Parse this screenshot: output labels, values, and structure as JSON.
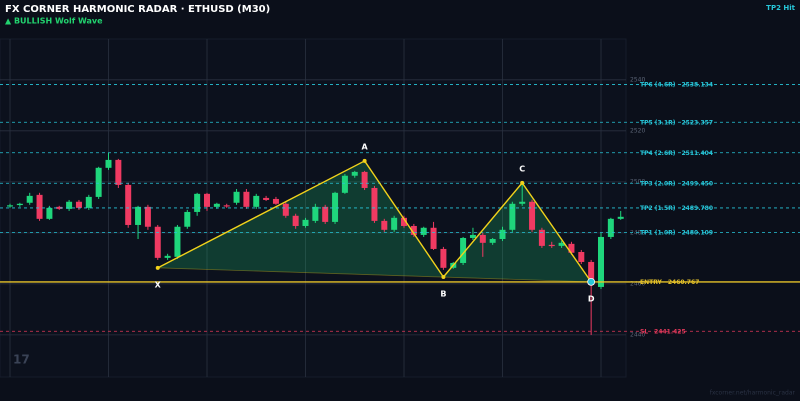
{
  "chart_data": {
    "type": "candlestick",
    "title": "FX CORNER HARMONIC RADAR  ·  ETHUSD (M30)",
    "subtitle": "▲ BULLISH  Wolf Wave",
    "status": "TP2 Hit",
    "watermark": "17",
    "footer": "fxcorner.net/harmonic_radar",
    "ylim": [
      2423.5,
      2556
    ],
    "yticks": [
      2440,
      2460,
      2480,
      2500,
      2520,
      2540
    ],
    "xticks": [
      0,
      10,
      20,
      30,
      40,
      50,
      60
    ],
    "grid": true,
    "up_color": "#1fd67c",
    "down_color": "#f03a62",
    "candles": {
      "open": [
        2490.4,
        2490.9,
        2491.8,
        2494.9,
        2485.5,
        2490.2,
        2489.4,
        2492.2,
        2489.8,
        2494.1,
        2505.5,
        2508.6,
        2498.8,
        2483.1,
        2490.2,
        2482.4,
        2470.2,
        2470.6,
        2482.4,
        2488.2,
        2495.3,
        2490.2,
        2490.8,
        2491.8,
        2496.1,
        2490.2,
        2493.7,
        2493.3,
        2491.4,
        2486.7,
        2482.7,
        2484.7,
        2490.2,
        2484.3,
        2495.7,
        2502.4,
        2503.9,
        2497.6,
        2484.7,
        2481.2,
        2485.9,
        2482.7,
        2479.2,
        2482.0,
        2473.7,
        2466.3,
        2468.2,
        2478.0,
        2479.2,
        2476.1,
        2477.6,
        2481.2,
        2491.4,
        2492.2,
        2481.2,
        2475.3,
        2474.9,
        2475.7,
        2472.5,
        2468.6,
        2458.8,
        2478.4,
        2485.5
      ],
      "high": [
        2491.4,
        2491.8,
        2495.7,
        2495.7,
        2490.6,
        2490.6,
        2492.9,
        2492.9,
        2494.9,
        2505.9,
        2511.4,
        2509.0,
        2499.6,
        2490.6,
        2491.0,
        2483.1,
        2471.8,
        2483.1,
        2489.0,
        2495.7,
        2495.7,
        2491.8,
        2491.4,
        2497.2,
        2497.2,
        2495.3,
        2494.5,
        2494.1,
        2492.2,
        2487.5,
        2485.9,
        2491.4,
        2491.0,
        2496.1,
        2503.1,
        2504.3,
        2504.3,
        2498.4,
        2485.5,
        2486.7,
        2486.7,
        2483.5,
        2482.4,
        2484.3,
        2474.5,
        2468.6,
        2478.4,
        2482.0,
        2480.0,
        2478.0,
        2482.4,
        2492.2,
        2499.6,
        2493.0,
        2482.0,
        2476.5,
        2476.9,
        2476.5,
        2473.3,
        2469.4,
        2480.0,
        2485.9,
        2488.6
      ],
      "low": [
        2489.8,
        2490.2,
        2491.0,
        2484.7,
        2485.1,
        2489.0,
        2488.6,
        2489.0,
        2489.0,
        2493.3,
        2504.7,
        2497.6,
        2482.0,
        2477.6,
        2481.2,
        2469.4,
        2469.4,
        2469.8,
        2481.6,
        2486.7,
        2488.6,
        2489.4,
        2489.8,
        2491.0,
        2489.4,
        2489.4,
        2492.5,
        2491.0,
        2485.9,
        2481.6,
        2482.0,
        2483.9,
        2483.5,
        2483.5,
        2495.3,
        2501.6,
        2496.8,
        2483.9,
        2480.4,
        2480.4,
        2482.0,
        2478.4,
        2478.4,
        2473.3,
        2465.5,
        2465.9,
        2467.4,
        2477.2,
        2470.6,
        2475.3,
        2476.8,
        2480.4,
        2490.6,
        2480.4,
        2474.1,
        2474.1,
        2474.1,
        2471.4,
        2467.8,
        2440.0,
        2458.0,
        2477.6,
        2485.1
      ],
      "close": [
        2490.8,
        2491.4,
        2494.5,
        2485.5,
        2489.8,
        2489.4,
        2492.2,
        2489.8,
        2494.1,
        2505.5,
        2508.6,
        2498.8,
        2483.1,
        2490.2,
        2482.4,
        2470.2,
        2471.0,
        2482.4,
        2488.2,
        2495.3,
        2490.2,
        2491.4,
        2490.4,
        2496.1,
        2490.2,
        2494.5,
        2492.9,
        2491.4,
        2486.7,
        2482.7,
        2485.1,
        2490.2,
        2484.3,
        2495.7,
        2502.4,
        2503.9,
        2497.6,
        2484.7,
        2481.2,
        2485.9,
        2482.7,
        2479.2,
        2482.0,
        2473.7,
        2466.3,
        2468.2,
        2478.0,
        2479.2,
        2476.1,
        2477.6,
        2481.2,
        2491.4,
        2492.2,
        2481.2,
        2474.9,
        2474.9,
        2476.1,
        2472.2,
        2468.6,
        2459.6,
        2478.4,
        2485.5,
        2486.3
      ]
    },
    "pattern": {
      "color": "#f2d21b",
      "points": [
        {
          "label": "X",
          "x": 15,
          "value": 2466.3
        },
        {
          "label": "A",
          "x": 36,
          "value": 2508.2
        },
        {
          "label": "B",
          "x": 44,
          "value": 2462.7
        },
        {
          "label": "C",
          "x": 52,
          "value": 2499.6
        },
        {
          "label": "D",
          "x": 59,
          "value": 2460.8
        }
      ]
    },
    "levels": [
      {
        "name": "TP6 (4.6R)",
        "price": 2538.134,
        "color": "#27c6d9",
        "dash": true
      },
      {
        "name": "TP5 (3.1R)",
        "price": 2523.357,
        "color": "#27c6d9",
        "dash": true
      },
      {
        "name": "TP4 (2.6R)",
        "price": 2511.404,
        "color": "#27c6d9",
        "dash": true
      },
      {
        "name": "TP3 (2.0R)",
        "price": 2499.45,
        "price_label": "2499.450",
        "color": "#27c6d9",
        "dash": true
      },
      {
        "name": "TP2 (1.5R)",
        "price": 2489.78,
        "price_label": "2489.780",
        "color": "#27c6d9",
        "dash": true
      },
      {
        "name": "TP1 (1.0R)",
        "price": 2480.109,
        "color": "#27c6d9",
        "dash": true
      },
      {
        "name": "ENTRY",
        "price": 2460.767,
        "color": "#e6c229",
        "dash": false
      },
      {
        "name": "SL",
        "price": 2441.425,
        "color": "#e2385a",
        "dash": true
      }
    ]
  }
}
